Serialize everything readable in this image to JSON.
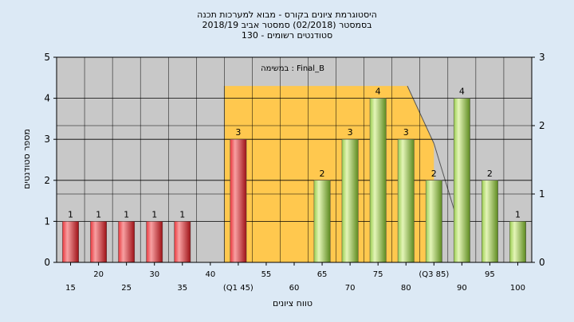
{
  "chart_data": {
    "type": "bar",
    "title_lines": [
      "היסטוגרמת ציונים בקורס - מבוא למערכות תכנה",
      "בסמסטר  (02/2018)  סמסטר אביב 2018/19",
      "סטודנטים רשומים - 130"
    ],
    "xlabel": "טווח ציונים",
    "ylabel": "מספר סטודנטים",
    "ylim": [
      0,
      5
    ],
    "y2lim": [
      0,
      3
    ],
    "yticks": [
      0,
      1,
      2,
      3,
      4,
      5
    ],
    "y2ticks": [
      0,
      1,
      2,
      3
    ],
    "legend": "במשימה : Final_B",
    "grid": true,
    "categories": [
      "15",
      "20",
      "25",
      "30",
      "35",
      "40",
      "(Q1 45)",
      "55",
      "60",
      "65",
      "70",
      "75",
      "80",
      "(Q3 85)",
      "90",
      "95",
      "100"
    ],
    "x_tick_labels_upper": [
      "20",
      "30",
      "40",
      "55",
      "65",
      "75",
      "(Q3 85)",
      "95"
    ],
    "x_tick_labels_lower": [
      "15",
      "25",
      "35",
      "(Q1 45)",
      "60",
      "70",
      "80",
      "90",
      "100"
    ],
    "series": [
      {
        "values": [
          1,
          1,
          1,
          1,
          1,
          0,
          3,
          0,
          0,
          2,
          3,
          4,
          3,
          2,
          4,
          2,
          1
        ],
        "bar_colors": [
          "red",
          "red",
          "red",
          "red",
          "red",
          "red",
          "red",
          "green",
          "green",
          "green",
          "green",
          "green",
          "green",
          "green",
          "green",
          "green",
          "green"
        ]
      }
    ],
    "value_labels": [
      "1",
      "1",
      "1",
      "1",
      "1",
      "",
      "3",
      "",
      "",
      "2",
      "3",
      "4",
      "3",
      "2",
      "4",
      "2",
      "1"
    ],
    "colors": {
      "red": "#e8383d",
      "green": "#9acd4f",
      "quartile_band": "#ffc84e",
      "plot_bg": "#c8c8c8"
    }
  }
}
